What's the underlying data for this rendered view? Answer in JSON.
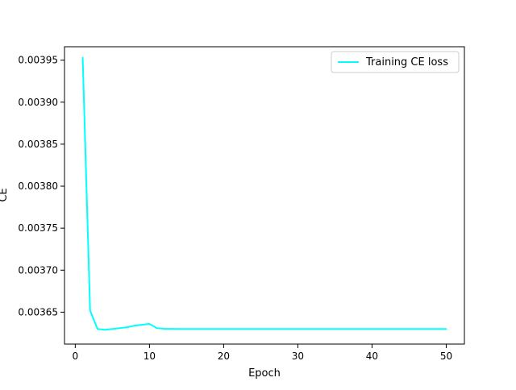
{
  "chart_data": {
    "type": "line",
    "title": "",
    "xlabel": "Epoch",
    "ylabel": "CE",
    "xlim": [
      -1.45,
      52.45
    ],
    "ylim": [
      0.003612,
      0.003966
    ],
    "xticks": [
      0,
      10,
      20,
      30,
      40,
      50
    ],
    "yticks": [
      0.00365,
      0.0037,
      0.00375,
      0.0038,
      0.00385,
      0.0039,
      0.00395
    ],
    "ytick_labels": [
      "0.00365",
      "0.00370",
      "0.00375",
      "0.00380",
      "0.00385",
      "0.00390",
      "0.00395"
    ],
    "grid": false,
    "legend": {
      "position": "top-right"
    },
    "series": [
      {
        "name": "Training CE loss",
        "color": "#00ffff",
        "x": [
          1,
          2,
          3,
          4,
          5,
          6,
          7,
          8,
          9,
          10,
          11,
          12,
          13,
          14,
          15,
          16,
          17,
          18,
          19,
          20,
          21,
          22,
          23,
          24,
          25,
          26,
          27,
          28,
          29,
          30,
          31,
          32,
          33,
          34,
          35,
          36,
          37,
          38,
          39,
          40,
          41,
          42,
          43,
          44,
          45,
          46,
          47,
          48,
          49,
          50
        ],
        "values": [
          0.003953,
          0.003652,
          0.00363,
          0.003629,
          0.00363,
          0.003631,
          0.003632,
          0.003634,
          0.003635,
          0.003636,
          0.003631,
          0.0036302,
          0.0036301,
          0.00363,
          0.00363,
          0.00363,
          0.00363,
          0.00363,
          0.00363,
          0.00363,
          0.00363,
          0.00363,
          0.00363,
          0.00363,
          0.00363,
          0.00363,
          0.00363,
          0.00363,
          0.00363,
          0.00363,
          0.00363,
          0.00363,
          0.00363,
          0.00363,
          0.00363,
          0.00363,
          0.00363,
          0.00363,
          0.00363,
          0.00363,
          0.00363,
          0.00363,
          0.00363,
          0.00363,
          0.00363,
          0.00363,
          0.00363,
          0.00363,
          0.00363,
          0.00363
        ]
      }
    ]
  }
}
